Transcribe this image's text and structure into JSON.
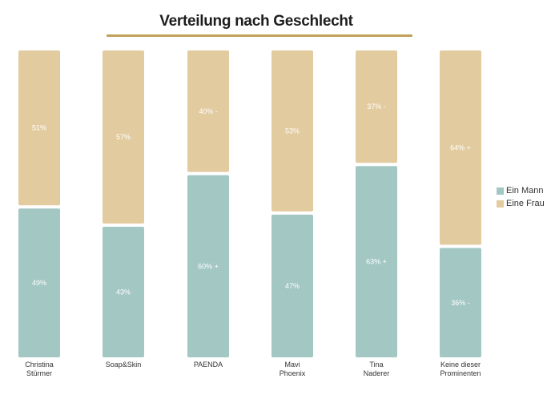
{
  "chart_data": {
    "type": "bar",
    "stacked": true,
    "orientation": "vertical",
    "title": "Verteilung nach Geschlecht",
    "categories": [
      [
        "Christina",
        "Stürmer"
      ],
      [
        "Soap&Skin"
      ],
      [
        "PAENDA"
      ],
      [
        "Mavi",
        "Phoenix"
      ],
      [
        "Tina",
        "Naderer"
      ],
      [
        "Keine dieser",
        "Prominenten"
      ]
    ],
    "series": [
      {
        "name": "Ein Mann",
        "color": "#a3c7c3",
        "values": [
          49,
          43,
          60,
          47,
          63,
          36
        ],
        "labels": [
          "49%",
          "43%",
          "60% +",
          "47%",
          "63% +",
          "36% -"
        ]
      },
      {
        "name": "Eine Frau",
        "color": "#e3cba0",
        "values": [
          51,
          57,
          40,
          53,
          37,
          64
        ],
        "labels": [
          "51%",
          "57%",
          "40% -",
          "53%",
          "37% -",
          "64% +"
        ]
      }
    ],
    "ylim": [
      0,
      100
    ],
    "grid": false,
    "legend_position": "right"
  }
}
